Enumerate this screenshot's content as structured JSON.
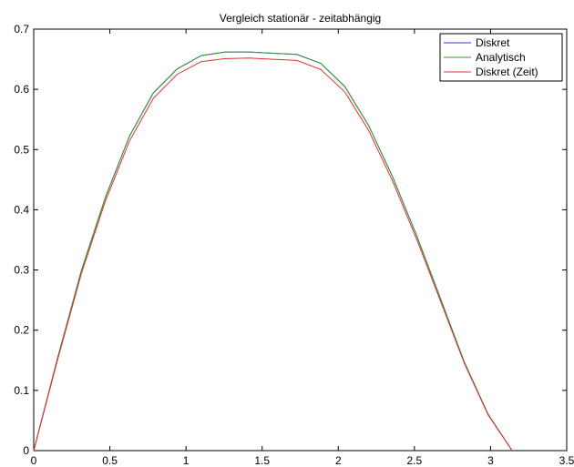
{
  "chart_data": {
    "type": "line",
    "title": "Vergleich stationär - zeitabhängig",
    "xlabel": "",
    "ylabel": "",
    "xlim": [
      0,
      3.5
    ],
    "ylim": [
      0,
      0.7
    ],
    "x_ticks": [
      "0",
      "0.5",
      "1",
      "1.5",
      "2",
      "2.5",
      "3",
      "3.5"
    ],
    "y_ticks": [
      "0",
      "0.1",
      "0.2",
      "0.3",
      "0.4",
      "0.5",
      "0.6",
      "0.7"
    ],
    "grid": false,
    "legend_position": "top-right",
    "x": [
      0,
      0.1571,
      0.3142,
      0.4712,
      0.6283,
      0.7854,
      0.9425,
      1.0996,
      1.2566,
      1.4137,
      1.5708,
      1.7279,
      1.885,
      2.042,
      2.1991,
      2.3562,
      2.5133,
      2.6704,
      2.8274,
      2.9845,
      3.1416
    ],
    "series": [
      {
        "name": "Diskret",
        "color": "#3333cc",
        "values": [
          0,
          0.154,
          0.3,
          0.421,
          0.522,
          0.594,
          0.634,
          0.656,
          0.662,
          0.662,
          0.66,
          0.658,
          0.643,
          0.605,
          0.54,
          0.455,
          0.358,
          0.253,
          0.147,
          0.06,
          0
        ]
      },
      {
        "name": "Analytisch",
        "color": "#339933",
        "values": [
          0,
          0.154,
          0.3,
          0.421,
          0.522,
          0.594,
          0.634,
          0.656,
          0.662,
          0.662,
          0.66,
          0.658,
          0.643,
          0.605,
          0.54,
          0.455,
          0.358,
          0.253,
          0.147,
          0.06,
          0
        ]
      },
      {
        "name": "Diskret (Zeit)",
        "color": "#e03030",
        "values": [
          0,
          0.151,
          0.295,
          0.415,
          0.514,
          0.585,
          0.625,
          0.646,
          0.651,
          0.652,
          0.65,
          0.648,
          0.633,
          0.596,
          0.532,
          0.448,
          0.352,
          0.249,
          0.145,
          0.059,
          0
        ]
      }
    ]
  }
}
